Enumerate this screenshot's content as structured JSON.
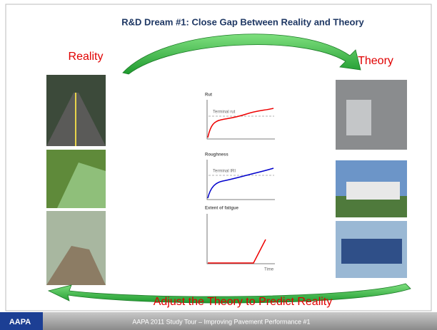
{
  "title": "R&D Dream #1: Close Gap Between Reality and Theory",
  "labels": {
    "left": "Reality",
    "right": "Theory",
    "bottom": "Adjust the Theory to Predict Reality"
  },
  "charts": [
    {
      "title": "Rut",
      "threshold_label": "Terminal rut"
    },
    {
      "title": "Roughness",
      "threshold_label": "Terminal IRI"
    },
    {
      "title": "Extent of fatigue",
      "x_label": "Time"
    }
  ],
  "footer": "AAPA 2011 Study Tour – Improving Pavement Performance #1",
  "logo": "AAPA"
}
